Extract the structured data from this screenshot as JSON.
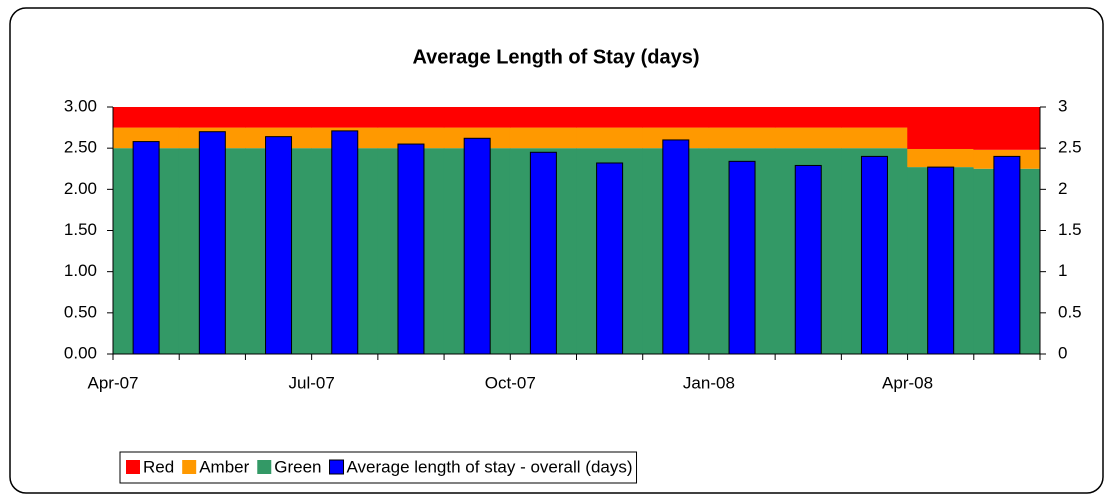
{
  "chart_data": {
    "type": "bar",
    "title": "Average Length of Stay (days)",
    "categories": [
      "Apr-07",
      null,
      null,
      "Jul-07",
      null,
      null,
      "Oct-07",
      null,
      null,
      "Jan-08",
      null,
      null,
      "Apr-08",
      null
    ],
    "area_series": [
      {
        "name": "Green",
        "color": "#339966",
        "values": [
          2.5,
          2.5,
          2.5,
          2.5,
          2.5,
          2.5,
          2.5,
          2.5,
          2.5,
          2.5,
          2.5,
          2.5,
          2.27,
          2.25
        ]
      },
      {
        "name": "Amber",
        "color": "#ff9900",
        "values": [
          0.25,
          0.25,
          0.25,
          0.25,
          0.25,
          0.25,
          0.25,
          0.25,
          0.25,
          0.25,
          0.25,
          0.25,
          0.22,
          0.23
        ]
      },
      {
        "name": "Red",
        "color": "#ff0000",
        "values": [
          0.25,
          0.25,
          0.25,
          0.25,
          0.25,
          0.25,
          0.25,
          0.25,
          0.25,
          0.25,
          0.25,
          0.25,
          0.51,
          0.52
        ]
      }
    ],
    "series": [
      {
        "name": "Average length of stay - overall (days)",
        "color": "#0000ff",
        "values": [
          2.58,
          2.7,
          2.64,
          2.71,
          2.55,
          2.62,
          2.45,
          2.32,
          2.6,
          2.34,
          2.29,
          2.4,
          2.27,
          2.4
        ]
      }
    ],
    "legend_order": [
      "Red",
      "Amber",
      "Green",
      "Average length of stay - overall (days)"
    ],
    "ylim": [
      0,
      3
    ],
    "yticks": [
      {
        "value": 0,
        "label": "0.00"
      },
      {
        "value": 0.5,
        "label": "0.50"
      },
      {
        "value": 1,
        "label": "1.00"
      },
      {
        "value": 1.5,
        "label": "1.50"
      },
      {
        "value": 2,
        "label": "2.00"
      },
      {
        "value": 2.5,
        "label": "2.50"
      },
      {
        "value": 3,
        "label": "3.00"
      }
    ],
    "y2lim": [
      0,
      3
    ],
    "y2ticks": [
      0,
      0.5,
      1,
      1.5,
      2,
      2.5,
      3
    ],
    "legend": "bottom"
  }
}
